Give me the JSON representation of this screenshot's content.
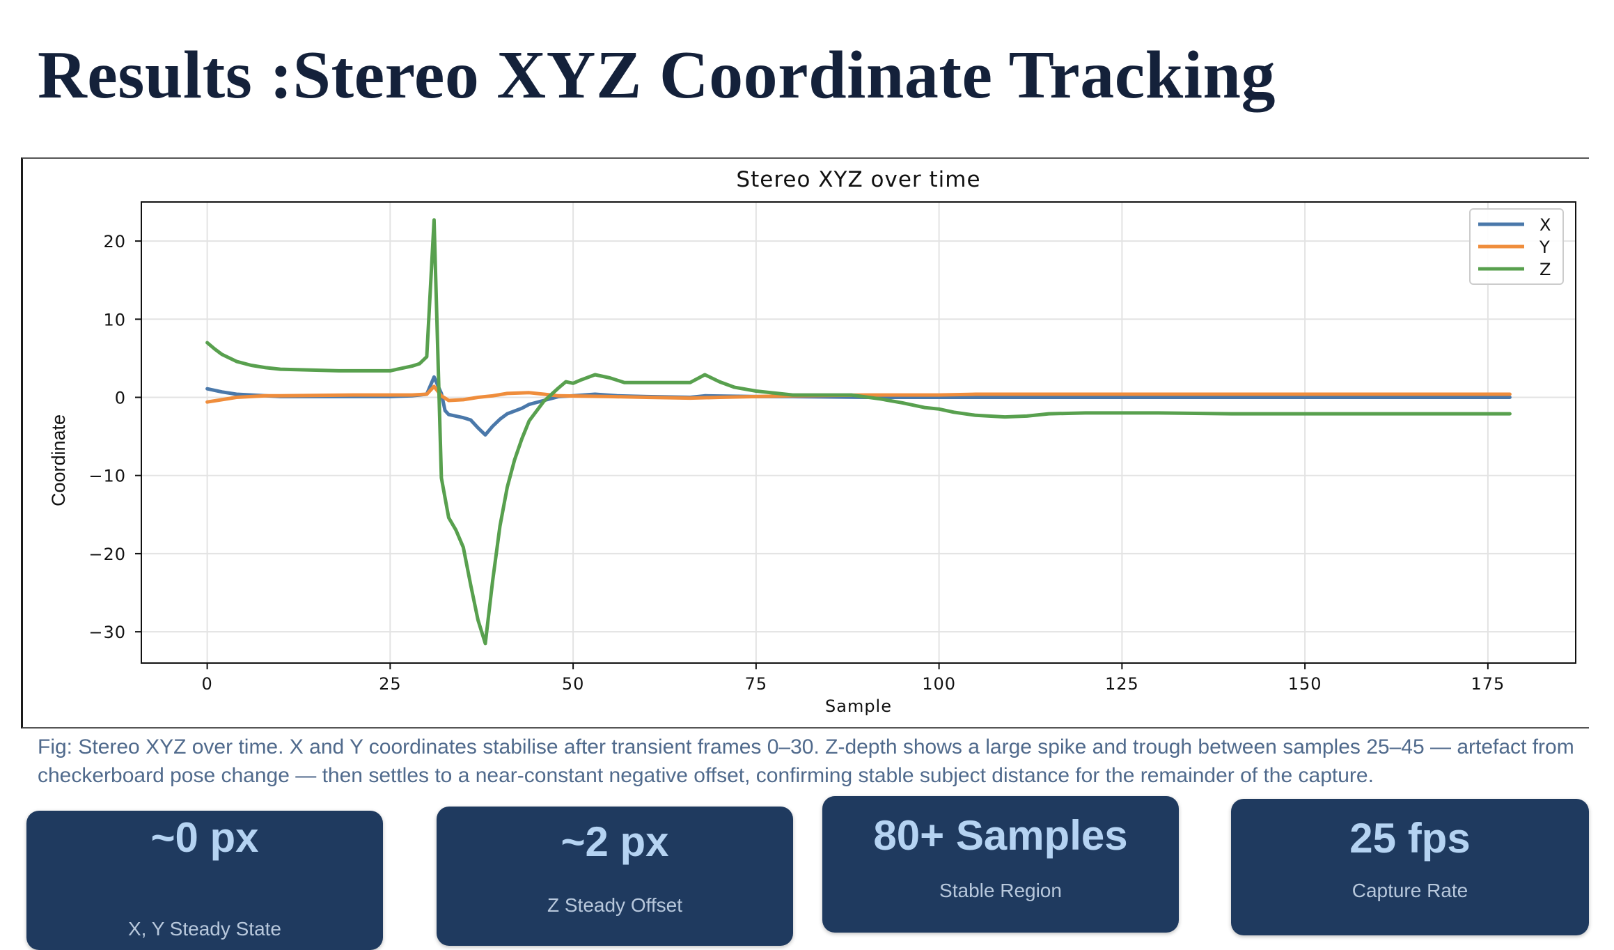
{
  "slide": {
    "title": "Results :Stereo XYZ Coordinate Tracking",
    "caption": "Fig: Stereo XYZ over time. X and Y coordinates stabilise after transient frames 0–30. Z-depth shows a large spike and trough between samples 25–45 — artefact from checkerboard pose change — then settles to a near-constant negative offset, confirming stable subject distance for the remainder of the capture."
  },
  "cards": [
    {
      "value": "~0 px",
      "label": "X, Y Steady State"
    },
    {
      "value": "~2 px",
      "label": "Z Steady Offset"
    },
    {
      "value": "80+ Samples",
      "label": "Stable Region"
    },
    {
      "value": "25 fps",
      "label": "Capture Rate"
    }
  ],
  "colors": {
    "title": "#14213a",
    "card_bg": "#1f3a5f",
    "card_value": "#b5d3f2",
    "card_label": "#b8c8dc",
    "caption": "#506a8c"
  },
  "chart_data": {
    "type": "line",
    "title": "Stereo XYZ over time",
    "xlabel": "Sample",
    "ylabel": "Coordinate",
    "xlim": [
      -9,
      187
    ],
    "ylim": [
      -34,
      25
    ],
    "xticks": [
      0,
      25,
      50,
      75,
      100,
      125,
      150,
      175
    ],
    "xtick_labels": [
      "0",
      "25",
      "50",
      "75",
      "100",
      "125",
      "150",
      "175"
    ],
    "yticks": [
      20,
      10,
      0,
      -10,
      -20,
      -30
    ],
    "ytick_labels": [
      "20",
      "10",
      "0",
      "−10",
      "−20",
      "−30"
    ],
    "grid": true,
    "legend": "top-right",
    "series": [
      {
        "name": "X",
        "color": "#4a78aa",
        "points": [
          [
            0,
            1.1
          ],
          [
            2,
            0.7
          ],
          [
            4,
            0.4
          ],
          [
            6,
            0.3
          ],
          [
            8,
            0.2
          ],
          [
            10,
            0.1
          ],
          [
            15,
            0.1
          ],
          [
            20,
            0.1
          ],
          [
            25,
            0.1
          ],
          [
            28,
            0.2
          ],
          [
            30,
            0.4
          ],
          [
            31,
            2.6
          ],
          [
            32,
            0.5
          ],
          [
            32.5,
            -1.7
          ],
          [
            33,
            -2.2
          ],
          [
            35,
            -2.6
          ],
          [
            36,
            -2.9
          ],
          [
            37,
            -3.9
          ],
          [
            38,
            -4.8
          ],
          [
            39,
            -3.7
          ],
          [
            40,
            -2.8
          ],
          [
            41,
            -2.1
          ],
          [
            43,
            -1.4
          ],
          [
            44,
            -0.9
          ],
          [
            46,
            -0.4
          ],
          [
            48,
            0.1
          ],
          [
            50,
            0.2
          ],
          [
            53,
            0.4
          ],
          [
            56,
            0.2
          ],
          [
            60,
            0.1
          ],
          [
            66,
            0.0
          ],
          [
            68,
            0.2
          ],
          [
            75,
            0.1
          ],
          [
            80,
            0.1
          ],
          [
            90,
            0.0
          ],
          [
            100,
            0.0
          ],
          [
            120,
            0.0
          ],
          [
            150,
            0.0
          ],
          [
            178,
            0.0
          ]
        ]
      },
      {
        "name": "Y",
        "color": "#ef8d3c",
        "points": [
          [
            0,
            -0.6
          ],
          [
            2,
            -0.3
          ],
          [
            4,
            0.0
          ],
          [
            6,
            0.1
          ],
          [
            8,
            0.2
          ],
          [
            10,
            0.2
          ],
          [
            20,
            0.3
          ],
          [
            28,
            0.3
          ],
          [
            30,
            0.4
          ],
          [
            31,
            1.4
          ],
          [
            32,
            0.2
          ],
          [
            33,
            -0.4
          ],
          [
            35,
            -0.3
          ],
          [
            37,
            0.0
          ],
          [
            39,
            0.2
          ],
          [
            41,
            0.5
          ],
          [
            44,
            0.6
          ],
          [
            46,
            0.4
          ],
          [
            48,
            0.2
          ],
          [
            55,
            0.1
          ],
          [
            60,
            0.0
          ],
          [
            66,
            -0.1
          ],
          [
            70,
            0.0
          ],
          [
            80,
            0.2
          ],
          [
            90,
            0.3
          ],
          [
            100,
            0.3
          ],
          [
            105,
            0.4
          ],
          [
            110,
            0.4
          ],
          [
            120,
            0.4
          ],
          [
            150,
            0.4
          ],
          [
            178,
            0.4
          ]
        ]
      },
      {
        "name": "Z",
        "color": "#58a04e",
        "points": [
          [
            0,
            7.0
          ],
          [
            1,
            6.2
          ],
          [
            2,
            5.5
          ],
          [
            4,
            4.6
          ],
          [
            6,
            4.1
          ],
          [
            8,
            3.8
          ],
          [
            10,
            3.6
          ],
          [
            14,
            3.5
          ],
          [
            18,
            3.4
          ],
          [
            22,
            3.4
          ],
          [
            25,
            3.4
          ],
          [
            26,
            3.6
          ],
          [
            28,
            4.0
          ],
          [
            29,
            4.3
          ],
          [
            30,
            5.2
          ],
          [
            31,
            22.7
          ],
          [
            32,
            -10.3
          ],
          [
            33,
            -15.4
          ],
          [
            34,
            -17.0
          ],
          [
            35,
            -19.2
          ],
          [
            36,
            -24.0
          ],
          [
            37,
            -28.5
          ],
          [
            38,
            -31.5
          ],
          [
            39,
            -23.5
          ],
          [
            40,
            -16.5
          ],
          [
            41,
            -11.5
          ],
          [
            42,
            -8.0
          ],
          [
            43,
            -5.3
          ],
          [
            44,
            -3.0
          ],
          [
            46,
            -0.5
          ],
          [
            48,
            1.2
          ],
          [
            49,
            2.0
          ],
          [
            50,
            1.8
          ],
          [
            51,
            2.2
          ],
          [
            53,
            2.9
          ],
          [
            55,
            2.5
          ],
          [
            57,
            1.9
          ],
          [
            60,
            1.9
          ],
          [
            66,
            1.9
          ],
          [
            68,
            2.9
          ],
          [
            70,
            2.0
          ],
          [
            72,
            1.3
          ],
          [
            75,
            0.8
          ],
          [
            80,
            0.3
          ],
          [
            88,
            0.3
          ],
          [
            92,
            -0.2
          ],
          [
            95,
            -0.7
          ],
          [
            98,
            -1.3
          ],
          [
            100,
            -1.5
          ],
          [
            102,
            -1.9
          ],
          [
            105,
            -2.3
          ],
          [
            109,
            -2.5
          ],
          [
            112,
            -2.4
          ],
          [
            115,
            -2.1
          ],
          [
            120,
            -2.0
          ],
          [
            130,
            -2.0
          ],
          [
            140,
            -2.1
          ],
          [
            160,
            -2.1
          ],
          [
            178,
            -2.1
          ]
        ]
      }
    ]
  }
}
